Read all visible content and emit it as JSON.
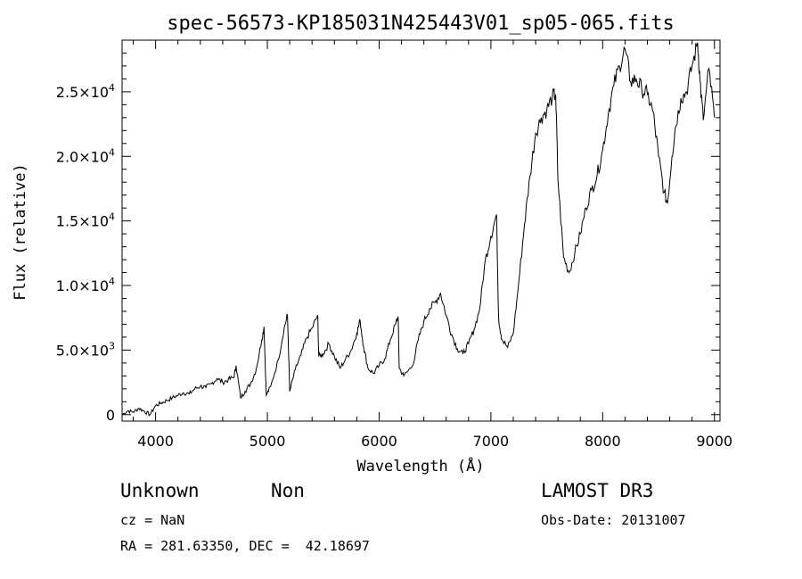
{
  "chart_data": {
    "type": "line",
    "title": "spec-56573-KP185031N425443V01_sp05-065.fits",
    "xlabel": "Wavelength (Å)",
    "ylabel": "Flux (relative)",
    "xlim": [
      3700,
      9050
    ],
    "ylim": [
      -500,
      29000
    ],
    "x_ticks": [
      4000,
      5000,
      6000,
      7000,
      8000,
      9000
    ],
    "x_tick_labels": [
      "4000",
      "5000",
      "6000",
      "7000",
      "8000",
      "9000"
    ],
    "y_ticks": [
      {
        "value": 0,
        "mantissa": "0",
        "exponent": ""
      },
      {
        "value": 5000,
        "mantissa": "5.0×10",
        "exponent": "3"
      },
      {
        "value": 10000,
        "mantissa": "1.0×10",
        "exponent": "4"
      },
      {
        "value": 15000,
        "mantissa": "1.5×10",
        "exponent": "4"
      },
      {
        "value": 20000,
        "mantissa": "2.0×10",
        "exponent": "4"
      },
      {
        "value": 25000,
        "mantissa": "2.5×10",
        "exponent": "4"
      }
    ],
    "series": [
      {
        "name": "flux",
        "points": [
          [
            3700,
            0
          ],
          [
            3750,
            300
          ],
          [
            3800,
            200
          ],
          [
            3850,
            500
          ],
          [
            3900,
            250
          ],
          [
            3950,
            0
          ],
          [
            4000,
            700
          ],
          [
            4050,
            900
          ],
          [
            4100,
            1100
          ],
          [
            4150,
            1300
          ],
          [
            4200,
            1500
          ],
          [
            4250,
            1700
          ],
          [
            4300,
            1600
          ],
          [
            4350,
            2000
          ],
          [
            4400,
            2200
          ],
          [
            4450,
            2100
          ],
          [
            4500,
            2400
          ],
          [
            4550,
            2800
          ],
          [
            4600,
            2500
          ],
          [
            4650,
            2700
          ],
          [
            4700,
            2900
          ],
          [
            4720,
            3800
          ],
          [
            4760,
            1300
          ],
          [
            4800,
            1800
          ],
          [
            4850,
            2400
          ],
          [
            4900,
            3500
          ],
          [
            4950,
            5800
          ],
          [
            4970,
            6800
          ],
          [
            4990,
            1500
          ],
          [
            5030,
            2200
          ],
          [
            5100,
            4300
          ],
          [
            5150,
            6700
          ],
          [
            5180,
            7700
          ],
          [
            5200,
            1800
          ],
          [
            5250,
            3500
          ],
          [
            5300,
            4600
          ],
          [
            5350,
            5900
          ],
          [
            5400,
            6700
          ],
          [
            5450,
            7700
          ],
          [
            5460,
            4500
          ],
          [
            5500,
            4700
          ],
          [
            5550,
            5500
          ],
          [
            5600,
            4500
          ],
          [
            5650,
            3600
          ],
          [
            5700,
            4300
          ],
          [
            5750,
            5000
          ],
          [
            5800,
            6300
          ],
          [
            5830,
            7300
          ],
          [
            5860,
            5300
          ],
          [
            5900,
            3600
          ],
          [
            5950,
            3200
          ],
          [
            6000,
            3800
          ],
          [
            6050,
            4300
          ],
          [
            6100,
            5800
          ],
          [
            6150,
            7100
          ],
          [
            6170,
            7600
          ],
          [
            6180,
            3600
          ],
          [
            6220,
            3000
          ],
          [
            6300,
            3800
          ],
          [
            6350,
            5800
          ],
          [
            6400,
            7200
          ],
          [
            6450,
            8200
          ],
          [
            6500,
            8700
          ],
          [
            6550,
            9400
          ],
          [
            6600,
            7700
          ],
          [
            6650,
            6200
          ],
          [
            6700,
            5100
          ],
          [
            6750,
            4700
          ],
          [
            6800,
            5500
          ],
          [
            6850,
            6600
          ],
          [
            6900,
            8200
          ],
          [
            6950,
            12000
          ],
          [
            7000,
            13800
          ],
          [
            7050,
            15500
          ],
          [
            7070,
            7300
          ],
          [
            7100,
            5800
          ],
          [
            7150,
            5200
          ],
          [
            7200,
            6300
          ],
          [
            7250,
            10300
          ],
          [
            7300,
            14700
          ],
          [
            7350,
            18500
          ],
          [
            7400,
            21800
          ],
          [
            7450,
            23000
          ],
          [
            7500,
            23600
          ],
          [
            7550,
            24600
          ],
          [
            7580,
            24800
          ],
          [
            7600,
            18200
          ],
          [
            7650,
            12200
          ],
          [
            7700,
            11000
          ],
          [
            7750,
            12500
          ],
          [
            7800,
            14000
          ],
          [
            7850,
            16000
          ],
          [
            7900,
            17400
          ],
          [
            7950,
            18500
          ],
          [
            8000,
            20500
          ],
          [
            8050,
            23300
          ],
          [
            8100,
            25500
          ],
          [
            8150,
            27000
          ],
          [
            8200,
            28300
          ],
          [
            8250,
            25800
          ],
          [
            8300,
            26000
          ],
          [
            8350,
            25200
          ],
          [
            8400,
            24800
          ],
          [
            8450,
            23500
          ],
          [
            8500,
            20000
          ],
          [
            8550,
            17200
          ],
          [
            8580,
            16400
          ],
          [
            8620,
            20000
          ],
          [
            8650,
            22200
          ],
          [
            8700,
            24500
          ],
          [
            8750,
            25000
          ],
          [
            8800,
            27000
          ],
          [
            8850,
            28800
          ],
          [
            8870,
            26000
          ],
          [
            8900,
            22800
          ],
          [
            8950,
            26800
          ],
          [
            9000,
            23000
          ]
        ]
      }
    ]
  },
  "info": {
    "object_class": "Unknown",
    "subclass": "Non",
    "redshift": "cz = NaN",
    "coords": "RA = 281.63350, DEC =  42.18697",
    "survey": "LAMOST DR3",
    "obs_date": "Obs-Date: 20131007"
  }
}
